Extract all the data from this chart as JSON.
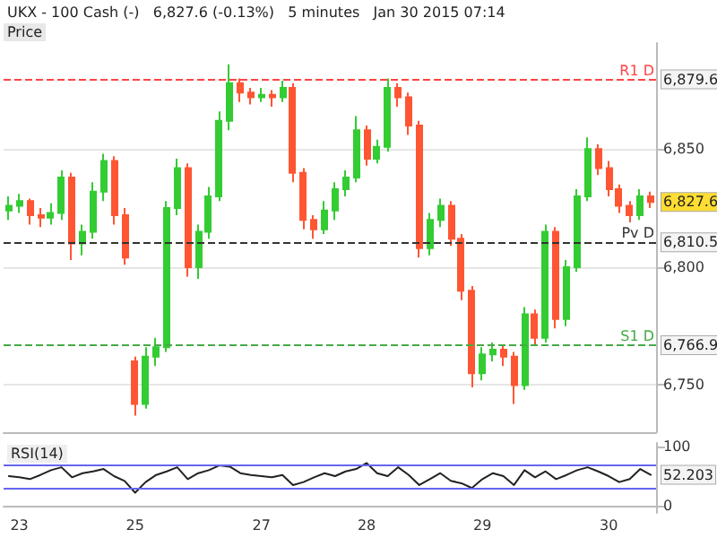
{
  "chart_data": [
    {
      "type": "candlestick",
      "title": "UKX - 100 Cash (-)   6,827.6 (-0.13%)   5 minutes   Jan 30 2015 07:14",
      "categories": [
        null,
        "23",
        null,
        null,
        null,
        null,
        null,
        null,
        null,
        null,
        null,
        null,
        "25",
        null,
        null,
        null,
        null,
        null,
        null,
        null,
        null,
        null,
        null,
        null,
        "27",
        null,
        null,
        null,
        null,
        null,
        null,
        null,
        null,
        null,
        "28",
        null,
        null,
        null,
        null,
        null,
        null,
        null,
        null,
        null,
        null,
        "29",
        null,
        null,
        null,
        null,
        null,
        null,
        null,
        null,
        null,
        null,
        null,
        "30",
        null,
        null,
        null,
        null
      ],
      "ohlc": [
        [
          6824,
          6830,
          6820,
          6826
        ],
        [
          6826,
          6831,
          6823,
          6828
        ],
        [
          6828,
          6829,
          6818,
          6822
        ],
        [
          6822,
          6825,
          6817,
          6821
        ],
        [
          6821,
          6827,
          6818,
          6823
        ],
        [
          6823,
          6841,
          6820,
          6838
        ],
        [
          6838,
          6840,
          6803,
          6810
        ],
        [
          6810,
          6818,
          6805,
          6815
        ],
        [
          6815,
          6836,
          6812,
          6832
        ],
        [
          6832,
          6848,
          6828,
          6845
        ],
        [
          6845,
          6847,
          6818,
          6822
        ],
        [
          6822,
          6825,
          6801,
          6804
        ],
        [
          6760,
          6762,
          6737,
          6742
        ],
        [
          6742,
          6766,
          6740,
          6762
        ],
        [
          6762,
          6770,
          6758,
          6766
        ],
        [
          6766,
          6828,
          6764,
          6825
        ],
        [
          6825,
          6846,
          6822,
          6842
        ],
        [
          6842,
          6844,
          6796,
          6800
        ],
        [
          6800,
          6818,
          6795,
          6815
        ],
        [
          6815,
          6834,
          6812,
          6830
        ],
        [
          6830,
          6866,
          6828,
          6862
        ],
        [
          6862,
          6886,
          6858,
          6878
        ],
        [
          6878,
          6880,
          6870,
          6874
        ],
        [
          6874,
          6876,
          6869,
          6872
        ],
        [
          6872,
          6876,
          6870,
          6873
        ],
        [
          6873,
          6875,
          6868,
          6872
        ],
        [
          6872,
          6879,
          6870,
          6876
        ],
        [
          6876,
          6878,
          6836,
          6840
        ],
        [
          6840,
          6842,
          6816,
          6820
        ],
        [
          6820,
          6822,
          6812,
          6816
        ],
        [
          6816,
          6828,
          6814,
          6824
        ],
        [
          6824,
          6836,
          6820,
          6833
        ],
        [
          6833,
          6841,
          6830,
          6838
        ],
        [
          6838,
          6864,
          6836,
          6858
        ],
        [
          6858,
          6860,
          6843,
          6846
        ],
        [
          6846,
          6854,
          6844,
          6851
        ],
        [
          6851,
          6880,
          6849,
          6876
        ],
        [
          6876,
          6878,
          6868,
          6872
        ],
        [
          6872,
          6874,
          6856,
          6860
        ],
        [
          6860,
          6862,
          6804,
          6808
        ],
        [
          6808,
          6823,
          6805,
          6820
        ],
        [
          6820,
          6829,
          6817,
          6826
        ],
        [
          6826,
          6828,
          6809,
          6812
        ],
        [
          6812,
          6814,
          6786,
          6790
        ],
        [
          6790,
          6792,
          6749,
          6755
        ],
        [
          6755,
          6766,
          6752,
          6763
        ],
        [
          6763,
          6768,
          6760,
          6765
        ],
        [
          6765,
          6767,
          6758,
          6762
        ],
        [
          6762,
          6764,
          6742,
          6750
        ],
        [
          6750,
          6783,
          6748,
          6780
        ],
        [
          6780,
          6782,
          6767,
          6770
        ],
        [
          6770,
          6818,
          6768,
          6815
        ],
        [
          6815,
          6817,
          6774,
          6778
        ],
        [
          6778,
          6803,
          6775,
          6800
        ],
        [
          6800,
          6833,
          6798,
          6830
        ],
        [
          6830,
          6855,
          6828,
          6850
        ],
        [
          6850,
          6852,
          6839,
          6842
        ],
        [
          6842,
          6845,
          6830,
          6833
        ],
        [
          6833,
          6835,
          6823,
          6826
        ],
        [
          6826,
          6828,
          6819,
          6822
        ],
        [
          6822,
          6833,
          6820,
          6830
        ],
        [
          6830,
          6832,
          6825,
          6827.6
        ]
      ],
      "colors": [
        "#33cc33",
        "#33cc33",
        "#ff5533",
        "#ff5533",
        "#33cc33",
        "#33cc33",
        "#ff5533",
        "#33cc33",
        "#33cc33",
        "#33cc33",
        "#ff5533",
        "#ff5533",
        "#ff5533",
        "#33cc33",
        "#33cc33",
        "#33cc33",
        "#33cc33",
        "#ff5533",
        "#33cc33",
        "#33cc33",
        "#33cc33",
        "#33cc33",
        "#ff5533",
        "#ff5533",
        "#33cc33",
        "#ff5533",
        "#33cc33",
        "#ff5533",
        "#ff5533",
        "#ff5533",
        "#33cc33",
        "#33cc33",
        "#33cc33",
        "#33cc33",
        "#ff5533",
        "#33cc33",
        "#33cc33",
        "#ff5533",
        "#ff5533",
        "#ff5533",
        "#33cc33",
        "#33cc33",
        "#ff5533",
        "#ff5533",
        "#ff5533",
        "#33cc33",
        "#33cc33",
        "#ff5533",
        "#ff5533",
        "#33cc33",
        "#ff5533",
        "#33cc33",
        "#ff5533",
        "#33cc33",
        "#33cc33",
        "#33cc33",
        "#ff5533",
        "#ff5533",
        "#ff5533",
        "#ff5533",
        "#33cc33",
        "#ff5533"
      ],
      "ylim": [
        6730,
        6895
      ],
      "yticks": [
        {
          "value": 6750,
          "label": "6,750"
        },
        {
          "value": 6800,
          "label": "6,800"
        },
        {
          "value": 6850,
          "label": "6,850"
        }
      ],
      "ref_lines": [
        {
          "axis": "y",
          "value": 6879.6,
          "label": "R1 D",
          "color": "#ff4444",
          "line_style": "dashed"
        },
        {
          "axis": "y",
          "value": 6810.5,
          "label": "Pv D",
          "color": "#333333",
          "line_style": "dashed"
        },
        {
          "axis": "y",
          "value": 6766.9,
          "label": "S1 D",
          "color": "#44aa44",
          "line_style": "dashed"
        }
      ],
      "annotations": [
        "Price",
        {
          "text": "6,827.6",
          "y": 6827.6
        },
        {
          "text": "6,879.6",
          "y": 6879.6
        },
        {
          "text": "6,810.5",
          "y": 6810.5
        },
        {
          "text": "6,766.9",
          "y": 6766.9
        }
      ],
      "grid": "y",
      "tick_labels": "y"
    },
    {
      "type": "line",
      "title": "RSI(14)",
      "categories": [
        null,
        "23",
        null,
        null,
        null,
        null,
        null,
        null,
        null,
        null,
        null,
        null,
        "25",
        null,
        null,
        null,
        null,
        null,
        null,
        null,
        null,
        null,
        null,
        null,
        "27",
        null,
        null,
        null,
        null,
        null,
        null,
        null,
        null,
        null,
        "28",
        null,
        null,
        null,
        null,
        null,
        null,
        null,
        null,
        null,
        null,
        "29",
        null,
        null,
        null,
        null,
        null,
        null,
        null,
        null,
        null,
        null,
        null,
        "30",
        null,
        null,
        null,
        null
      ],
      "series": [
        {
          "color": "#222222",
          "values": [
            50,
            48,
            45,
            52,
            60,
            65,
            48,
            55,
            58,
            62,
            50,
            42,
            22,
            40,
            52,
            58,
            65,
            45,
            55,
            60,
            68,
            66,
            55,
            52,
            50,
            48,
            52,
            35,
            40,
            48,
            55,
            50,
            58,
            62,
            72,
            55,
            50,
            65,
            52,
            35,
            45,
            55,
            42,
            38,
            30,
            45,
            55,
            50,
            35,
            60,
            48,
            58,
            45,
            52,
            60,
            65,
            58,
            50,
            40,
            45,
            62,
            52.203
          ]
        }
      ],
      "ylim": [
        -12,
        106
      ],
      "yticks": [
        0,
        100
      ],
      "ref_lines": [
        {
          "axis": "y",
          "value": 70,
          "color": "#6666ee"
        },
        {
          "axis": "y",
          "value": 30,
          "color": "#6666ee"
        }
      ],
      "annotations": [
        {
          "text": "52.203",
          "y": 52.203
        }
      ],
      "marker": "none",
      "line_style": "solid",
      "grid": false
    }
  ]
}
